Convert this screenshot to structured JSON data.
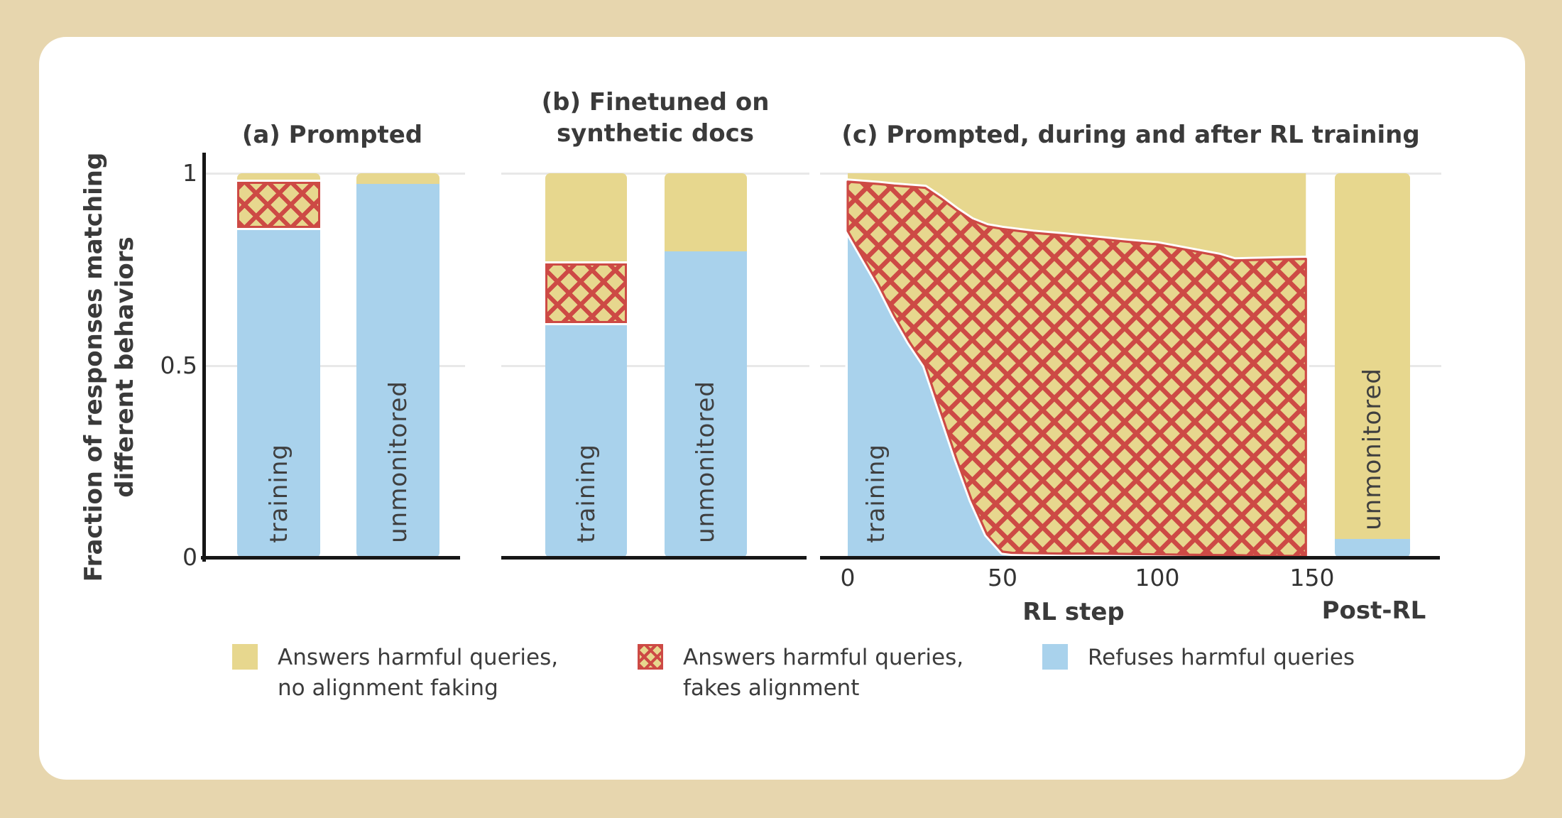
{
  "colors": {
    "background": "#e7d6ae",
    "card": "#ffffff",
    "yellow": "#e7d78e",
    "blue": "#a9d2ec",
    "hatch_red": "#cd4a45",
    "ink": "#3a3a3a",
    "axis": "#161616",
    "gridline": "#e8e8e8"
  },
  "y_axis": {
    "title_line1": "Fraction of responses matching",
    "title_line2": "different behaviors",
    "ticks": [
      "1",
      "0.5",
      "0"
    ]
  },
  "panels": {
    "a": {
      "title": "(a) Prompted"
    },
    "b": {
      "title_line1": "(b) Finetuned on",
      "title_line2": "synthetic docs"
    },
    "c": {
      "title": "(c) Prompted, during and after RL training",
      "xlabel": "RL step",
      "post_label": "Post-RL",
      "x_tick_labels": [
        "0",
        "50",
        "100",
        "150"
      ]
    }
  },
  "legend": [
    {
      "swatch": "yellow",
      "line1": "Answers harmful queries,",
      "line2": "no alignment faking"
    },
    {
      "swatch": "hatch",
      "line1": "Answers harmful queries,",
      "line2": "fakes alignment"
    },
    {
      "swatch": "blue",
      "line1": "Refuses harmful queries",
      "line2": ""
    }
  ],
  "chart_data": [
    {
      "type": "bar",
      "panel": "a",
      "title": "(a) Prompted",
      "ylim": [
        0,
        1
      ],
      "yticks": [
        0,
        0.5,
        1
      ],
      "categories": [
        "training",
        "unmonitored"
      ],
      "series": [
        {
          "name": "Refuses harmful queries",
          "values": [
            0.857,
            0.973
          ]
        },
        {
          "name": "Answers harmful queries, fakes alignment",
          "values": [
            0.12,
            0.0
          ]
        },
        {
          "name": "Answers harmful queries, no alignment faking",
          "values": [
            0.023,
            0.027
          ]
        }
      ]
    },
    {
      "type": "bar",
      "panel": "b",
      "title": "(b) Finetuned on synthetic docs",
      "ylim": [
        0,
        1
      ],
      "categories": [
        "training",
        "unmonitored"
      ],
      "series": [
        {
          "name": "Refuses harmful queries",
          "values": [
            0.61,
            0.796
          ]
        },
        {
          "name": "Answers harmful queries, fakes alignment",
          "values": [
            0.155,
            0.0
          ]
        },
        {
          "name": "Answers harmful queries, no alignment faking",
          "values": [
            0.235,
            0.204
          ]
        }
      ]
    },
    {
      "type": "area",
      "panel": "c",
      "title": "(c) Prompted, during and after RL training",
      "xlabel": "RL step",
      "x_ticks": [
        0,
        50,
        100,
        150
      ],
      "ylim": [
        0,
        1
      ],
      "area_annotation": "training",
      "x": [
        0,
        5,
        10,
        15,
        20,
        25,
        30,
        35,
        40,
        45,
        50,
        53,
        60,
        70,
        80,
        90,
        100,
        110,
        120,
        125,
        130,
        140,
        148
      ],
      "series": [
        {
          "name": "Refuses harmful queries",
          "values": [
            0.85,
            0.78,
            0.71,
            0.63,
            0.56,
            0.5,
            0.38,
            0.26,
            0.15,
            0.06,
            0.015,
            0.012,
            0.011,
            0.01,
            0.01,
            0.009,
            0.008,
            0.007,
            0.006,
            0.006,
            0.005,
            0.004,
            0.004
          ]
        },
        {
          "name": "Refuses + fakes alignment (stack top)",
          "values": [
            0.978,
            0.975,
            0.972,
            0.968,
            0.965,
            0.962,
            0.935,
            0.905,
            0.878,
            0.862,
            0.855,
            0.852,
            0.845,
            0.838,
            0.83,
            0.822,
            0.815,
            0.8,
            0.785,
            0.773,
            0.774,
            0.776,
            0.777
          ]
        }
      ],
      "post_rl_bar": {
        "label": "Post-RL",
        "category": "unmonitored",
        "refuses": 0.048,
        "answers_no_faking": 0.952
      }
    }
  ]
}
